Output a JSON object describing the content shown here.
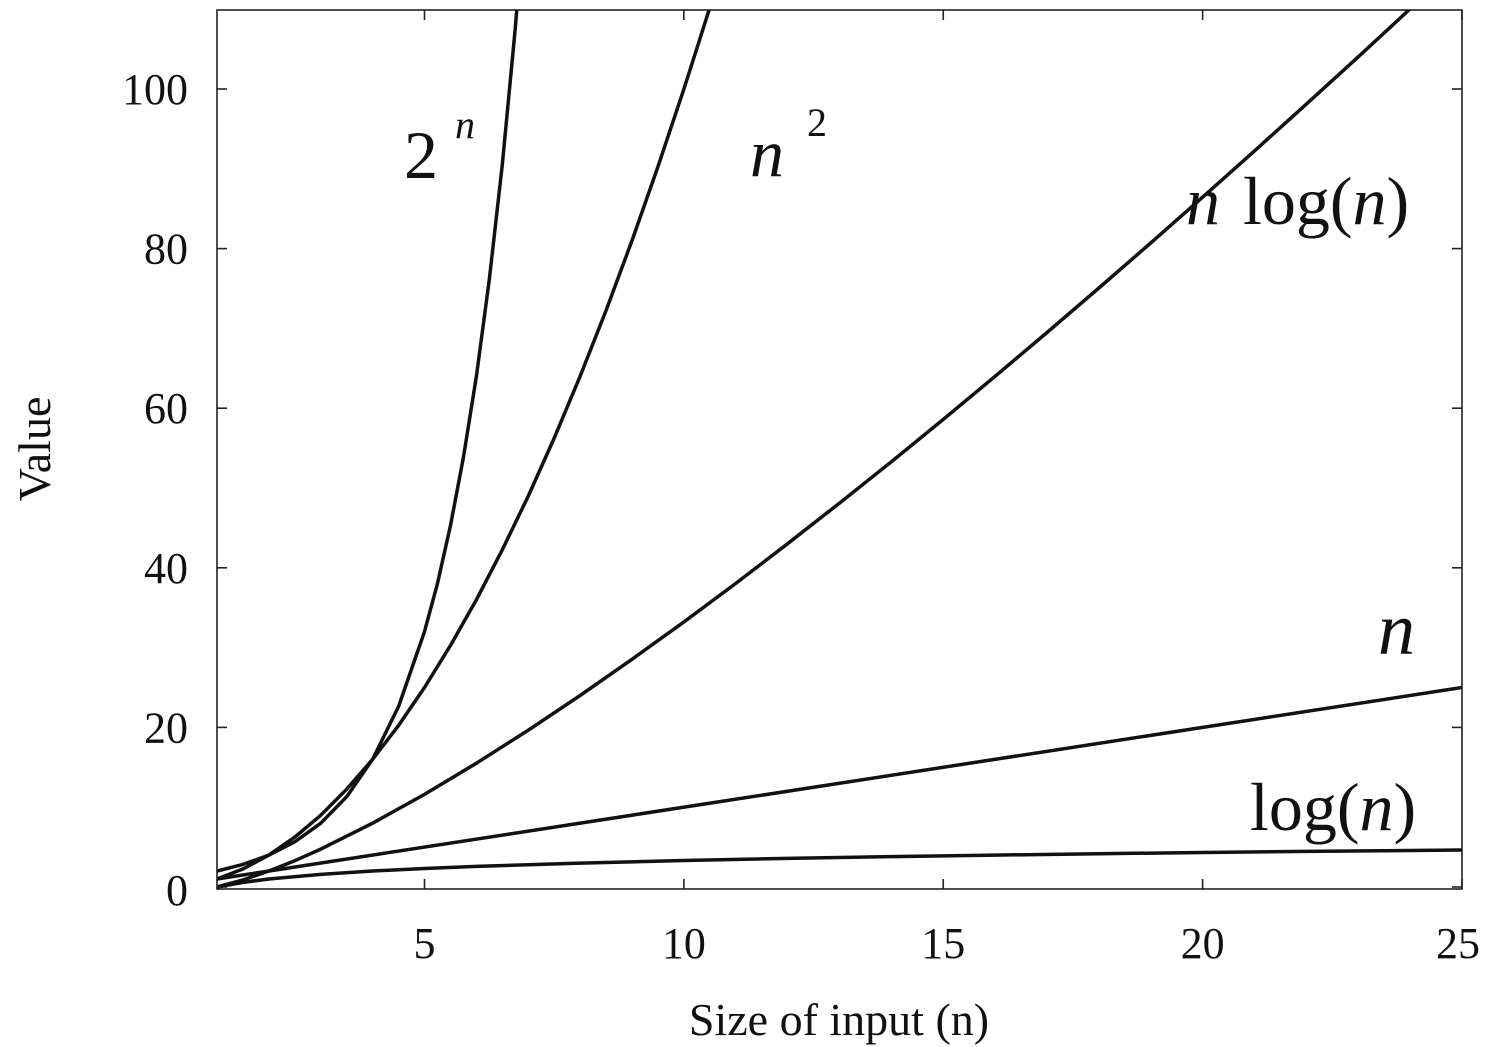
{
  "chart_data": {
    "type": "line",
    "title": "",
    "xlabel": "Size of input (n)",
    "ylabel": "Value",
    "xlim": [
      1,
      25
    ],
    "ylim": [
      0,
      110
    ],
    "x_ticks": [
      5,
      10,
      15,
      20,
      25
    ],
    "y_ticks": [
      0,
      20,
      40,
      60,
      80,
      100
    ],
    "grid": false,
    "legend": "none (labels placed next to curves)",
    "series": [
      {
        "name": "2^n",
        "label_base": "2",
        "label_sup": "n",
        "x": [
          1,
          1.5,
          2,
          2.5,
          3,
          3.5,
          4,
          4.5,
          5,
          5.25,
          5.5,
          5.75,
          6,
          6.25,
          6.5,
          6.75,
          6.78
        ],
        "y": [
          2,
          2.83,
          4,
          5.66,
          8,
          11.31,
          16,
          22.63,
          32,
          38.05,
          45.25,
          53.82,
          64,
          76.11,
          90.51,
          107.63,
          110
        ]
      },
      {
        "name": "n^2",
        "label_base": "n",
        "label_sup": "2",
        "x": [
          1,
          1.5,
          2,
          2.5,
          3,
          3.5,
          4,
          4.5,
          5,
          5.5,
          6,
          6.5,
          7,
          7.5,
          8,
          8.5,
          9,
          9.5,
          10,
          10.25,
          10.49
        ],
        "y": [
          1,
          2.25,
          4,
          6.25,
          9,
          12.25,
          16,
          20.25,
          25,
          30.25,
          36,
          42.25,
          49,
          56.25,
          64,
          72.25,
          81,
          90.25,
          100,
          105.06,
          110
        ]
      },
      {
        "name": "n log(n)",
        "label_n": "n",
        "label_rest": "log(",
        "label_arg": "n",
        "label_close": ")",
        "x": [
          1,
          1.5,
          2,
          2.5,
          3,
          4,
          5,
          6,
          7,
          8,
          9,
          10,
          11,
          12,
          13,
          14,
          15,
          16,
          17,
          18,
          19,
          20,
          21,
          22,
          23,
          24,
          25
        ],
        "y": [
          0,
          0.88,
          2,
          3.3,
          4.75,
          8,
          11.61,
          15.51,
          19.65,
          24,
          28.53,
          33.22,
          38.05,
          43.02,
          48.11,
          53.3,
          58.6,
          64,
          69.49,
          75.06,
          80.71,
          86.44,
          92.24,
          98.11,
          104.04,
          110.04,
          116.1
        ]
      },
      {
        "name": "n",
        "label_n": "n",
        "x": [
          1,
          25
        ],
        "y": [
          1,
          25
        ]
      },
      {
        "name": "log(n)",
        "label_rest": "log(",
        "label_arg": "n",
        "label_close": ")",
        "x": [
          1,
          1.5,
          2,
          3,
          4,
          5,
          6,
          8,
          10,
          12,
          14,
          16,
          18,
          20,
          22,
          25
        ],
        "y": [
          0,
          0.58,
          1,
          1.58,
          2,
          2.32,
          2.58,
          3,
          3.32,
          3.58,
          3.81,
          4,
          4.17,
          4.32,
          4.46,
          4.64
        ]
      }
    ]
  }
}
